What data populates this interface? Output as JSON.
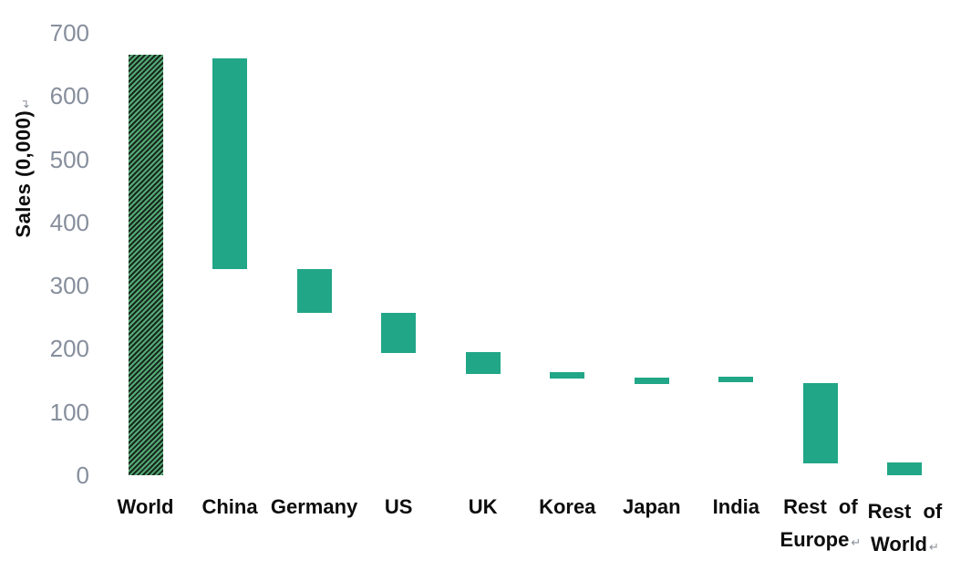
{
  "chart_data": {
    "type": "bar",
    "subtype": "waterfall",
    "title": "",
    "xlabel": "",
    "ylabel": "Sales (0,000)",
    "ylabel_trailing_mark": "↵",
    "ylim": [
      0,
      700
    ],
    "ytick_interval": 100,
    "yticks": [
      0,
      100,
      200,
      300,
      400,
      500,
      600,
      700
    ],
    "grid": false,
    "legend": false,
    "axis_lines": false,
    "categories": [
      "World",
      "China",
      "Germany",
      "US",
      "UK",
      "Korea",
      "Japan",
      "India",
      "Rest of Europe",
      "Rest of World"
    ],
    "bars": [
      {
        "category": "World",
        "label_lines": [
          "World"
        ],
        "trailing_mark": "",
        "start": 0,
        "end": 665,
        "fill": "hatched",
        "label_dy": 0
      },
      {
        "category": "China",
        "label_lines": [
          "China"
        ],
        "trailing_mark": "",
        "start": 326,
        "end": 660,
        "fill": "solid",
        "label_dy": 0
      },
      {
        "category": "Germany",
        "label_lines": [
          "Germany"
        ],
        "trailing_mark": "",
        "start": 257,
        "end": 326,
        "fill": "solid",
        "label_dy": 0
      },
      {
        "category": "US",
        "label_lines": [
          "US"
        ],
        "trailing_mark": "",
        "start": 193,
        "end": 257,
        "fill": "solid",
        "label_dy": 0
      },
      {
        "category": "UK",
        "label_lines": [
          "UK"
        ],
        "trailing_mark": "",
        "start": 160,
        "end": 195,
        "fill": "solid",
        "label_dy": 0
      },
      {
        "category": "Korea",
        "label_lines": [
          "Korea"
        ],
        "trailing_mark": "",
        "start": 153,
        "end": 163,
        "fill": "solid",
        "label_dy": 0
      },
      {
        "category": "Japan",
        "label_lines": [
          "Japan"
        ],
        "trailing_mark": "",
        "start": 144,
        "end": 154,
        "fill": "solid",
        "label_dy": 0
      },
      {
        "category": "India",
        "label_lines": [
          "India"
        ],
        "trailing_mark": "",
        "start": 147,
        "end": 156,
        "fill": "solid",
        "label_dy": 0
      },
      {
        "category": "Rest of Europe",
        "label_lines": [
          "Rest of",
          "Europe"
        ],
        "trailing_mark": "↵",
        "start": 19,
        "end": 146,
        "fill": "solid",
        "label_dy": 0
      },
      {
        "category": "Rest of World",
        "label_lines": [
          "Rest of",
          "World"
        ],
        "trailing_mark": "↵",
        "start": 0,
        "end": 20,
        "fill": "solid",
        "label_dy": 5
      }
    ],
    "colors": {
      "bar_solid": "#21a687",
      "hatch_stripe_light": "#55aa76",
      "hatch_stripe_dark": "#16281c",
      "tick_label": "#868e9c",
      "category_label": "#0d0d0d",
      "axis_title": "#0d0d0d",
      "line_break_mark": "#8a9099",
      "background": "#ffffff"
    }
  }
}
